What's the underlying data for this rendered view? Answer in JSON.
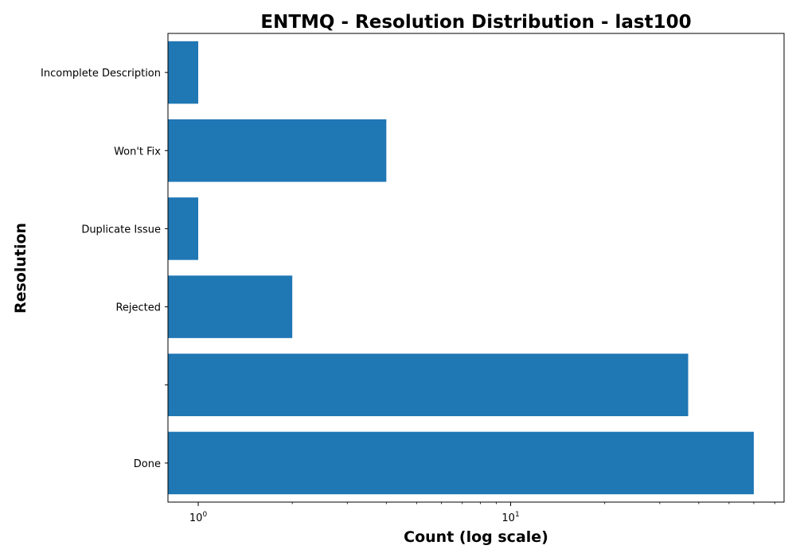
{
  "chart_data": {
    "type": "bar",
    "orientation": "horizontal",
    "title": "ENTMQ - Resolution Distribution - last100",
    "xlabel": "Count (log scale)",
    "ylabel": "Resolution",
    "x_scale": "log",
    "xlim": [
      0.8,
      75
    ],
    "grid": false,
    "bar_color": "#1f77b4",
    "categories": [
      "Done",
      "",
      "Rejected",
      "Duplicate Issue",
      "Won't Fix",
      "Incomplete Description"
    ],
    "values": [
      60,
      37,
      2,
      1,
      4,
      1
    ],
    "x_ticks": [
      {
        "value": 1,
        "base": "10",
        "exp": "0"
      },
      {
        "value": 10,
        "base": "10",
        "exp": "1"
      }
    ]
  }
}
